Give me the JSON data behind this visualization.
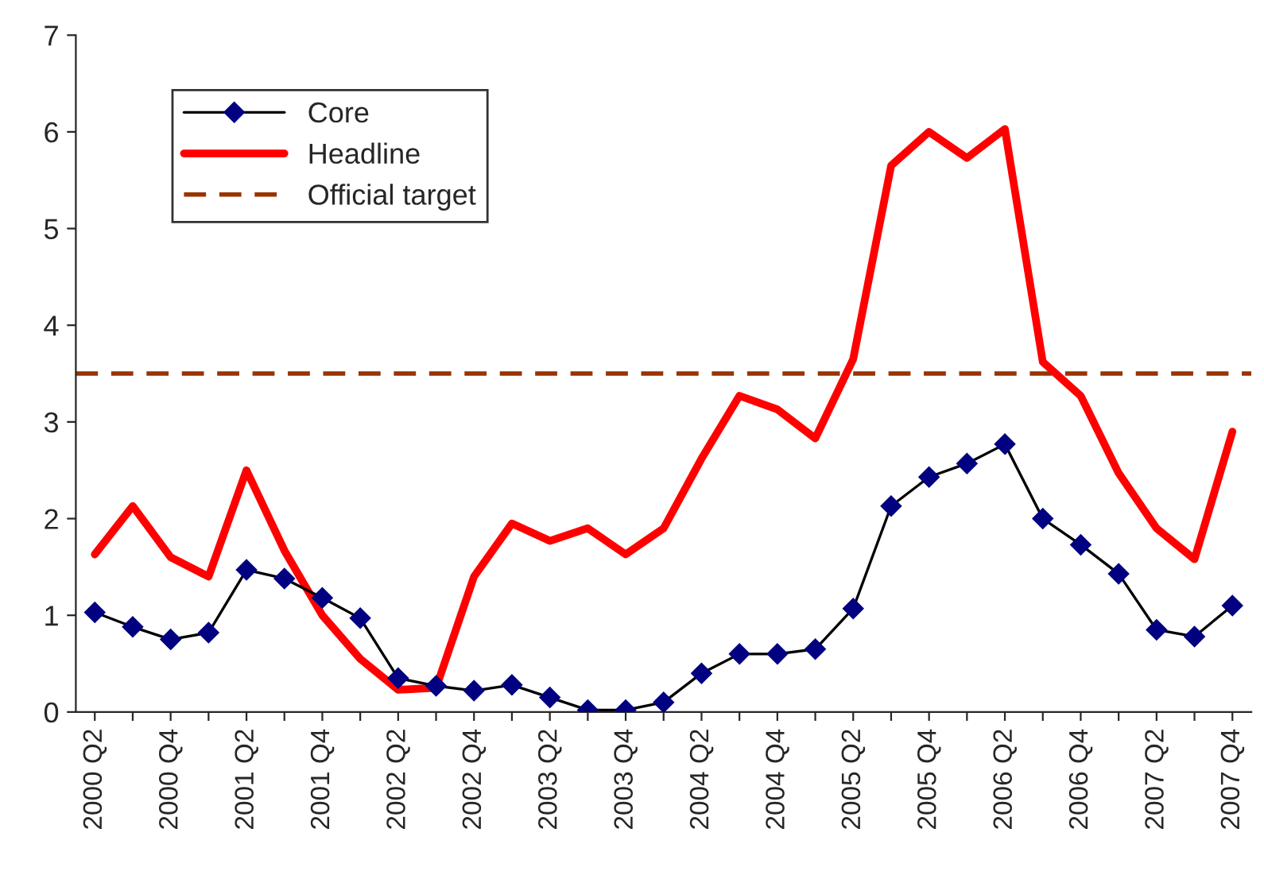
{
  "chart_data": {
    "type": "line",
    "categories": [
      "2000 Q2",
      null,
      "2000 Q4",
      null,
      "2001 Q2",
      null,
      "2001 Q4",
      null,
      "2002 Q2",
      null,
      "2002 Q4",
      null,
      "2003 Q2",
      null,
      "2003 Q4",
      null,
      "2004 Q2",
      null,
      "2004 Q4",
      null,
      "2005 Q2",
      null,
      "2005 Q4",
      null,
      "2006 Q2",
      null,
      "2006 Q4",
      null,
      "2007 Q2",
      null,
      "2007 Q4"
    ],
    "series": [
      {
        "name": "Core",
        "color": "#000080",
        "marker": "diamond",
        "values": [
          1.03,
          0.88,
          0.75,
          0.82,
          1.47,
          1.38,
          1.18,
          0.97,
          0.35,
          0.27,
          0.22,
          0.28,
          0.15,
          0.02,
          0.02,
          0.1,
          0.4,
          0.6,
          0.6,
          0.65,
          1.07,
          2.13,
          2.43,
          2.57,
          2.77,
          2.0,
          1.73,
          1.43,
          0.85,
          0.78,
          1.1
        ]
      },
      {
        "name": "Headline",
        "color": "#ff0000",
        "marker": "none",
        "values": [
          1.63,
          2.13,
          1.6,
          1.4,
          2.5,
          1.67,
          1.0,
          0.55,
          0.23,
          0.25,
          1.4,
          1.95,
          1.77,
          1.9,
          1.63,
          1.9,
          2.62,
          3.27,
          3.13,
          2.83,
          3.65,
          5.65,
          6.0,
          5.73,
          6.03,
          3.62,
          3.27,
          2.47,
          1.9,
          1.58,
          2.9
        ]
      }
    ],
    "ref_lines": [
      {
        "axis": "y",
        "value": 3.5,
        "label": "Official target",
        "color": "#993300",
        "line_style": "dashed"
      }
    ],
    "ylim": [
      0,
      7
    ],
    "yticks": [
      0,
      1,
      2,
      3,
      4,
      5,
      6,
      7
    ],
    "grid": false,
    "legend": "top left"
  }
}
